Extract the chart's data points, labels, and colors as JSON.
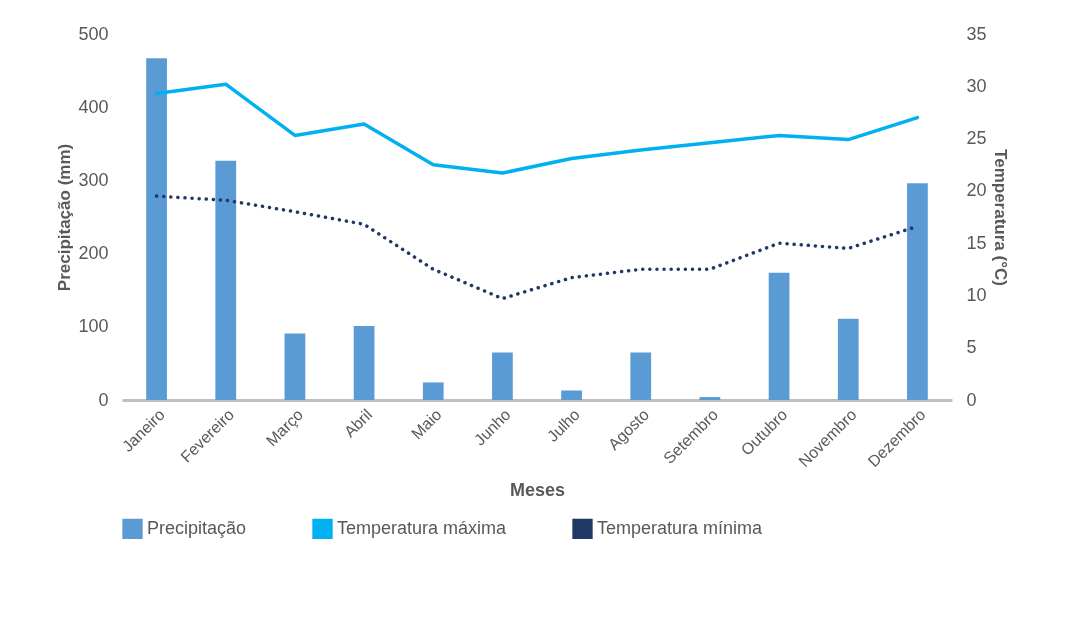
{
  "chart_data": {
    "type": "bar",
    "xlabel": "Meses",
    "ylabel": "Precipitação (mm)",
    "y2label": "Temperatura (°C)",
    "categories": [
      "Janeiro",
      "Fevereiro",
      "Março",
      "Abril",
      "Maio",
      "Junho",
      "Julho",
      "Agosto",
      "Setembro",
      "Outubro",
      "Novembro",
      "Dezembro"
    ],
    "series": [
      {
        "name": "Precipitação",
        "color": "#5b9bd5",
        "values": [
          467,
          327,
          91,
          101,
          24,
          65,
          13,
          65,
          4,
          174,
          111,
          296
        ]
      },
      {
        "name": "Temperatura máxima",
        "type": "line",
        "axis": "y2",
        "color": "#00b0f0",
        "line_style": "solid",
        "values": [
          29.3,
          30.2,
          25.3,
          26.4,
          22.5,
          21.7,
          23.1,
          23.9,
          24.6,
          25.3,
          24.9,
          27.0
        ]
      },
      {
        "name": "Temperatura mínima",
        "type": "line",
        "axis": "y2",
        "color": "#1f3864",
        "line_style": "dotted",
        "values": [
          19.5,
          19.1,
          18.0,
          16.8,
          12.5,
          9.7,
          11.7,
          12.5,
          12.5,
          15.0,
          14.5,
          16.6
        ]
      }
    ],
    "ylim": [
      0,
      500
    ],
    "yticks": [
      0,
      100,
      200,
      300,
      400,
      500
    ],
    "y2lim": [
      0,
      35
    ],
    "y2ticks": [
      0,
      5,
      10,
      15,
      20,
      25,
      30,
      35
    ],
    "grid": false,
    "legend": "bottom"
  }
}
